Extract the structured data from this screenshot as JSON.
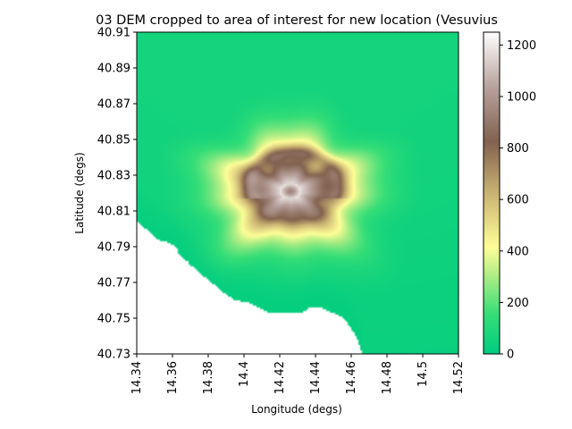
{
  "chart_data": {
    "type": "heatmap",
    "title": "03 DEM cropped to area of interest for new location (Vesuvius",
    "xlabel": "Longitude (degs)",
    "ylabel": "Latitude (degs)",
    "xlim": [
      14.34,
      14.52
    ],
    "ylim": [
      40.73,
      40.91
    ],
    "x_ticks": [
      "14.34",
      "14.36",
      "14.38",
      "14.4",
      "14.42",
      "14.44",
      "14.46",
      "14.48",
      "14.5",
      "14.52"
    ],
    "x_tick_values": [
      14.34,
      14.36,
      14.38,
      14.4,
      14.42,
      14.44,
      14.46,
      14.48,
      14.5,
      14.52
    ],
    "y_ticks": [
      "40.73",
      "40.75",
      "40.77",
      "40.79",
      "40.81",
      "40.83",
      "40.85",
      "40.87",
      "40.89",
      "40.91"
    ],
    "y_tick_values": [
      40.73,
      40.75,
      40.77,
      40.79,
      40.81,
      40.83,
      40.85,
      40.87,
      40.89,
      40.91
    ],
    "colorbar": {
      "colormap": "terrain",
      "range": [
        0,
        1250
      ],
      "ticks": [
        "0",
        "200",
        "400",
        "600",
        "800",
        "1000",
        "1200"
      ],
      "tick_values": [
        0,
        200,
        400,
        600,
        800,
        1000,
        1200
      ]
    },
    "features": {
      "summit": {
        "lon": 14.426,
        "lat": 40.821,
        "elevation": 1250
      },
      "caldera_rim_elevation": 1000,
      "sea_level": 0,
      "coastline": [
        [
          14.34,
          40.804
        ],
        [
          14.345,
          40.8
        ],
        [
          14.352,
          40.794
        ],
        [
          14.358,
          40.792
        ],
        [
          14.362,
          40.79
        ],
        [
          14.364,
          40.785
        ],
        [
          14.368,
          40.782
        ],
        [
          14.372,
          40.778
        ],
        [
          14.378,
          40.773
        ],
        [
          14.383,
          40.769
        ],
        [
          14.389,
          40.764
        ],
        [
          14.395,
          40.76
        ],
        [
          14.402,
          40.759
        ],
        [
          14.406,
          40.757
        ],
        [
          14.41,
          40.755
        ],
        [
          14.414,
          40.753
        ],
        [
          14.432,
          40.753
        ],
        [
          14.437,
          40.756
        ],
        [
          14.443,
          40.756
        ],
        [
          14.447,
          40.754
        ],
        [
          14.452,
          40.752
        ],
        [
          14.456,
          40.75
        ],
        [
          14.46,
          40.744
        ],
        [
          14.463,
          40.739
        ],
        [
          14.465,
          40.734
        ],
        [
          14.466,
          40.73
        ]
      ]
    }
  }
}
